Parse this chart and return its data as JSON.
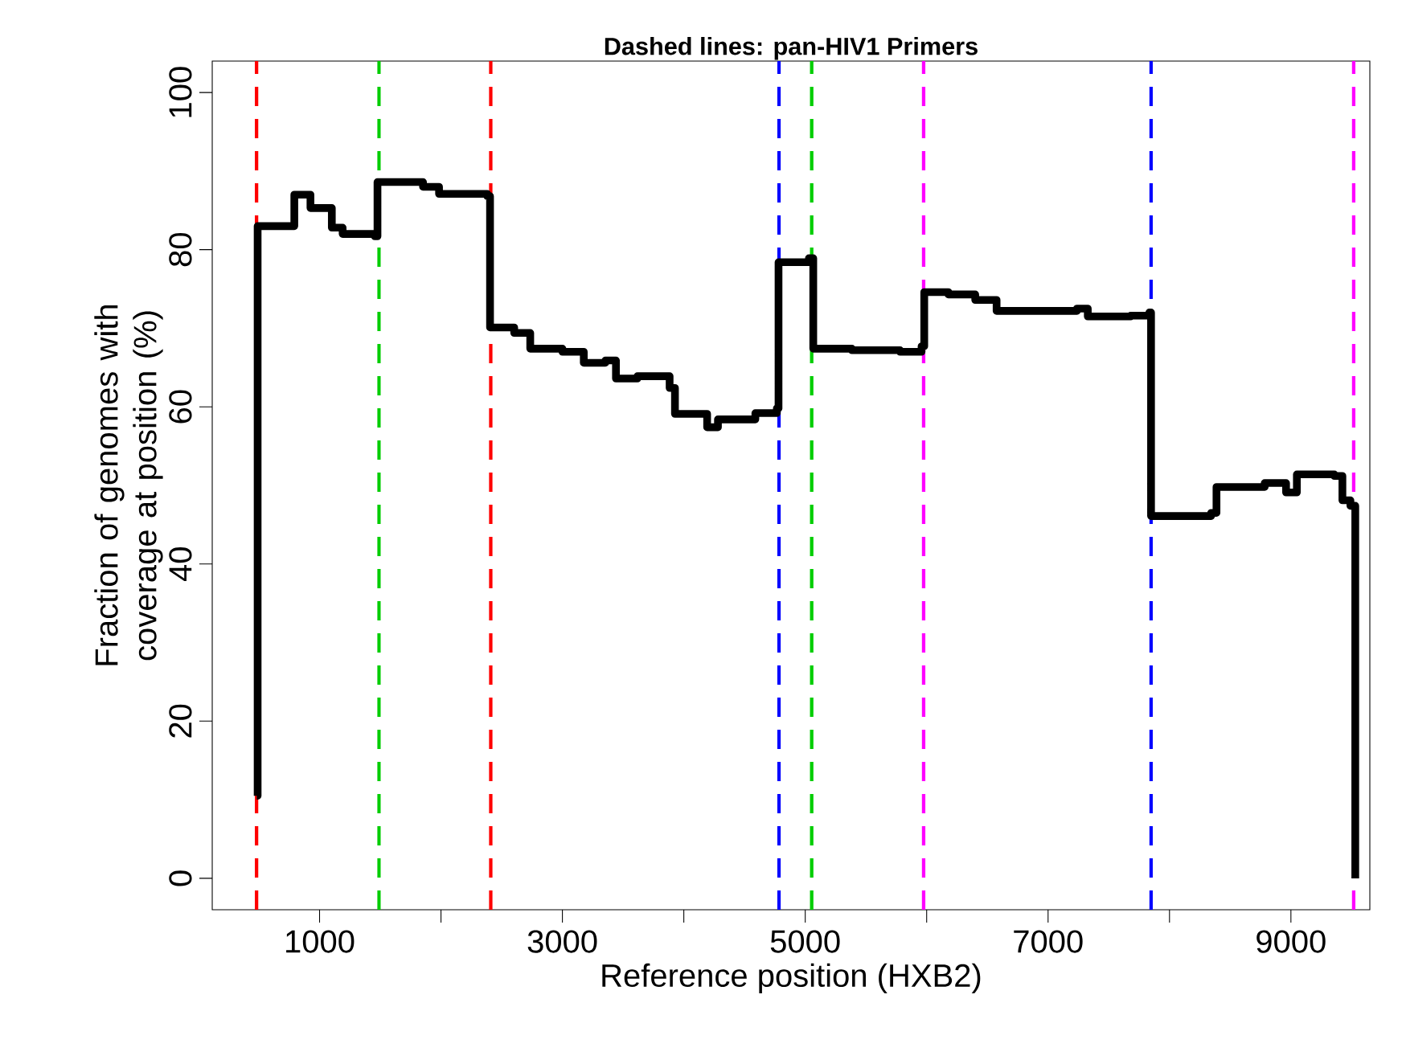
{
  "chart_data": {
    "type": "step",
    "title": "Dashed lines: pan-HIV1 Primers",
    "xlabel": "Reference position (HXB2)",
    "ylabel": "Fraction of genomes with coverage at position (%)",
    "x": [
      483,
      490,
      792,
      792,
      925,
      1101,
      1190,
      1455,
      1477,
      1764,
      1852,
      1984,
      2381,
      2404,
      2603,
      2735,
      3000,
      3176,
      3354,
      3441,
      3618,
      3883,
      3927,
      4192,
      4281,
      4501,
      4589,
      4766,
      4780,
      5030,
      5066,
      5384,
      5781,
      5958,
      5980,
      6179,
      6400,
      6576,
      7238,
      7327,
      7680,
      7834,
      7848,
      8122,
      8343,
      8387,
      8784,
      8960,
      9049,
      9358,
      9424,
      9490,
      9530
    ],
    "series": [
      {
        "color": "#000000",
        "values": [
          10.5,
          83,
          83,
          87,
          85.3,
          82.8,
          82,
          81.7,
          88.6,
          88.6,
          88,
          87.1,
          86.8,
          70.1,
          69.4,
          67.4,
          67,
          65.6,
          65.9,
          63.6,
          63.9,
          62.4,
          59.1,
          57.4,
          58.4,
          58.4,
          59.2,
          59.8,
          78.4,
          78.9,
          67.4,
          67.2,
          67,
          67.7,
          74.6,
          74.3,
          73.6,
          72.2,
          72.5,
          71.5,
          71.6,
          72,
          46.1,
          46.1,
          46.5,
          49.8,
          50.3,
          49.1,
          51.4,
          51.2,
          48.1,
          47.4,
          0
        ]
      }
    ],
    "xlim": [
      116,
      9650
    ],
    "ylim": [
      -4,
      104
    ],
    "xticks": [
      1000,
      {
        "value": 2000,
        "label": null
      },
      3000,
      {
        "value": 4000,
        "label": null
      },
      5000,
      {
        "value": 6000,
        "label": null
      },
      7000,
      {
        "value": 8000,
        "label": null
      },
      9000
    ],
    "yticks": [
      0,
      20,
      40,
      60,
      80,
      100
    ],
    "grid": false,
    "marker": "none",
    "line_style": "solid",
    "ref_lines": [
      {
        "axis": "x",
        "value": 481,
        "color": "#ff0000",
        "line_style": "dashed"
      },
      {
        "axis": "x",
        "value": 1490,
        "color": "#00cd00",
        "line_style": "dashed"
      },
      {
        "axis": "x",
        "value": 2410,
        "color": "#ff0000",
        "line_style": "dashed"
      },
      {
        "axis": "x",
        "value": 4784,
        "color": "#0000ff",
        "line_style": "dashed"
      },
      {
        "axis": "x",
        "value": 5053,
        "color": "#00cd00",
        "line_style": "dashed"
      },
      {
        "axis": "x",
        "value": 5975,
        "color": "#ff00ff",
        "line_style": "dashed"
      },
      {
        "axis": "x",
        "value": 7848,
        "color": "#0000ff",
        "line_style": "dashed"
      },
      {
        "axis": "x",
        "value": 9517,
        "color": "#ff00ff",
        "line_style": "dashed"
      }
    ]
  }
}
